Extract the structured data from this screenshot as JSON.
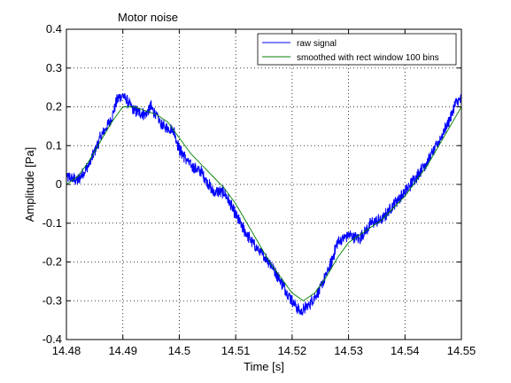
{
  "chart_data": {
    "type": "line",
    "title": "Motor noise",
    "xlabel": "Time [s]",
    "ylabel": "Amplitude [Pa]",
    "xlim": [
      14.48,
      14.55
    ],
    "ylim": [
      -0.4,
      0.4
    ],
    "x_ticks": [
      "14.48",
      "14.49",
      "14.5",
      "14.51",
      "14.52",
      "14.53",
      "14.54",
      "14.55"
    ],
    "y_ticks": [
      "0.4",
      "0.3",
      "0.2",
      "0.1",
      "0",
      "-0.1",
      "-0.2",
      "-0.3",
      "-0.4"
    ],
    "grid": true,
    "legend_position": "top-right",
    "series": [
      {
        "name": "raw signal",
        "color": "#0000ff",
        "x": [
          14.48,
          14.482,
          14.484,
          14.486,
          14.488,
          14.489,
          14.49,
          14.492,
          14.494,
          14.495,
          14.497,
          14.499,
          14.5,
          14.502,
          14.504,
          14.506,
          14.508,
          14.51,
          14.512,
          14.514,
          14.516,
          14.518,
          14.52,
          14.5215,
          14.523,
          14.525,
          14.527,
          14.528,
          14.53,
          14.532,
          14.534,
          14.536,
          14.538,
          14.54,
          14.542,
          14.544,
          14.546,
          14.548,
          14.549,
          14.55
        ],
        "values": [
          0.02,
          0.01,
          0.05,
          0.12,
          0.17,
          0.22,
          0.23,
          0.19,
          0.18,
          0.2,
          0.15,
          0.14,
          0.09,
          0.05,
          0.03,
          -0.02,
          -0.02,
          -0.08,
          -0.13,
          -0.17,
          -0.2,
          -0.25,
          -0.3,
          -0.33,
          -0.31,
          -0.27,
          -0.2,
          -0.15,
          -0.13,
          -0.14,
          -0.1,
          -0.09,
          -0.05,
          -0.02,
          0.02,
          0.06,
          0.11,
          0.17,
          0.21,
          0.22
        ]
      },
      {
        "name": "smoothed with rect window 100 bins",
        "color": "#008000",
        "x": [
          14.48,
          14.482,
          14.484,
          14.486,
          14.488,
          14.49,
          14.492,
          14.494,
          14.496,
          14.498,
          14.5,
          14.502,
          14.504,
          14.506,
          14.508,
          14.51,
          14.512,
          14.514,
          14.516,
          14.518,
          14.52,
          14.522,
          14.524,
          14.526,
          14.528,
          14.53,
          14.532,
          14.534,
          14.536,
          14.538,
          14.54,
          14.542,
          14.544,
          14.546,
          14.548,
          14.55
        ],
        "values": [
          0.0,
          0.02,
          0.06,
          0.11,
          0.16,
          0.2,
          0.2,
          0.19,
          0.18,
          0.16,
          0.12,
          0.08,
          0.05,
          0.02,
          -0.01,
          -0.05,
          -0.1,
          -0.15,
          -0.2,
          -0.24,
          -0.28,
          -0.3,
          -0.28,
          -0.24,
          -0.19,
          -0.15,
          -0.13,
          -0.11,
          -0.09,
          -0.06,
          -0.03,
          0.01,
          0.05,
          0.1,
          0.15,
          0.2
        ]
      }
    ]
  }
}
